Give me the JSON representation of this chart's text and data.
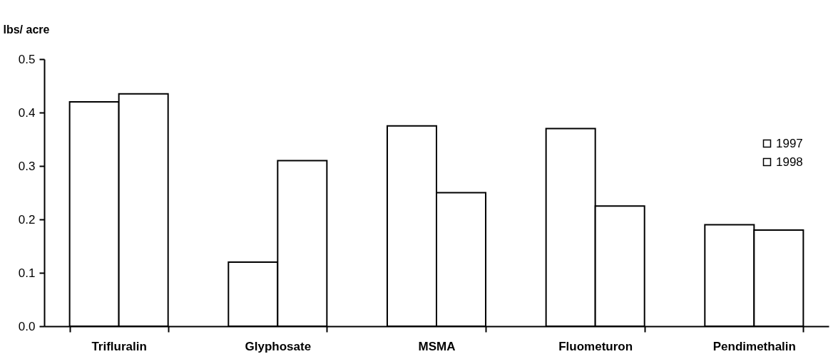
{
  "chart_data": {
    "type": "bar",
    "ylabel": "lbs/ acre",
    "categories": [
      "Trifluralin",
      "Glyphosate",
      "MSMA",
      "Fluometuron",
      "Pendimethalin"
    ],
    "series": [
      {
        "name": "1997",
        "color": "#ffffff",
        "values": [
          0.42,
          0.12,
          0.375,
          0.37,
          0.19
        ]
      },
      {
        "name": "1998",
        "color": "#ffffff",
        "values": [
          0.435,
          0.31,
          0.25,
          0.225,
          0.18
        ]
      }
    ],
    "ylim": [
      0,
      0.5
    ],
    "yticks": [
      {
        "value": 0,
        "label": "0.0"
      },
      {
        "value": 0.1,
        "label": "0.1"
      },
      {
        "value": 0.2,
        "label": "0.2"
      },
      {
        "value": 0.3,
        "label": "0.3"
      },
      {
        "value": 0.4,
        "label": "0.4"
      },
      {
        "value": 0.5,
        "label": "0.5"
      }
    ],
    "grid": false,
    "legend": "right"
  }
}
